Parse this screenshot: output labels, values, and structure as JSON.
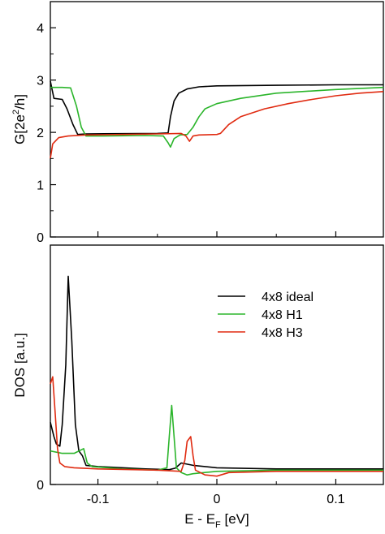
{
  "chart_data": [
    {
      "type": "line",
      "ylabel_main": "G[2e",
      "ylabel_sup": "2",
      "ylabel_end": "/h]",
      "xlim": [
        -0.14,
        0.14
      ],
      "ylim": [
        0,
        4.5
      ],
      "yticks": [
        0,
        1,
        2,
        3,
        4
      ],
      "ytick_labels": [
        "0",
        "1",
        "2",
        "3",
        "4"
      ],
      "grid": false,
      "series": [
        {
          "name": "4x8 ideal",
          "color": "#000000",
          "points": [
            [
              -0.14,
              2.98
            ],
            [
              -0.137,
              2.65
            ],
            [
              -0.13,
              2.63
            ],
            [
              -0.126,
              2.45
            ],
            [
              -0.121,
              2.15
            ],
            [
              -0.117,
              1.96
            ],
            [
              -0.11,
              1.97
            ],
            [
              -0.05,
              1.98
            ],
            [
              -0.041,
              1.99
            ],
            [
              -0.039,
              2.3
            ],
            [
              -0.036,
              2.6
            ],
            [
              -0.032,
              2.75
            ],
            [
              -0.025,
              2.83
            ],
            [
              -0.015,
              2.87
            ],
            [
              0.0,
              2.89
            ],
            [
              0.05,
              2.9
            ],
            [
              0.1,
              2.91
            ],
            [
              0.14,
              2.91
            ]
          ]
        },
        {
          "name": "4x8 H1",
          "color": "#2bb52b",
          "points": [
            [
              -0.14,
              2.86
            ],
            [
              -0.13,
              2.86
            ],
            [
              -0.123,
              2.85
            ],
            [
              -0.118,
              2.5
            ],
            [
              -0.114,
              2.1
            ],
            [
              -0.11,
              1.93
            ],
            [
              -0.1,
              1.93
            ],
            [
              -0.06,
              1.94
            ],
            [
              -0.045,
              1.93
            ],
            [
              -0.041,
              1.8
            ],
            [
              -0.039,
              1.72
            ],
            [
              -0.036,
              1.88
            ],
            [
              -0.031,
              1.95
            ],
            [
              -0.025,
              1.96
            ],
            [
              -0.02,
              2.1
            ],
            [
              -0.015,
              2.3
            ],
            [
              -0.01,
              2.45
            ],
            [
              0.0,
              2.55
            ],
            [
              0.02,
              2.65
            ],
            [
              0.05,
              2.75
            ],
            [
              0.1,
              2.82
            ],
            [
              0.14,
              2.86
            ]
          ]
        },
        {
          "name": "4x8 H3",
          "color": "#e02a10",
          "points": [
            [
              -0.14,
              1.5
            ],
            [
              -0.138,
              1.78
            ],
            [
              -0.133,
              1.9
            ],
            [
              -0.125,
              1.93
            ],
            [
              -0.11,
              1.95
            ],
            [
              -0.08,
              1.96
            ],
            [
              -0.05,
              1.97
            ],
            [
              -0.03,
              1.98
            ],
            [
              -0.026,
              1.93
            ],
            [
              -0.023,
              1.83
            ],
            [
              -0.02,
              1.93
            ],
            [
              -0.015,
              1.95
            ],
            [
              0.0,
              1.96
            ],
            [
              0.003,
              1.98
            ],
            [
              0.01,
              2.15
            ],
            [
              0.02,
              2.3
            ],
            [
              0.04,
              2.45
            ],
            [
              0.06,
              2.55
            ],
            [
              0.08,
              2.63
            ],
            [
              0.1,
              2.7
            ],
            [
              0.12,
              2.75
            ],
            [
              0.14,
              2.78
            ]
          ]
        }
      ]
    },
    {
      "type": "line",
      "xlabel_main": "E - E",
      "xlabel_sub": "F",
      "xlabel_end": " [eV]",
      "ylabel": "DOS [a.u.]",
      "xlim": [
        -0.14,
        0.14
      ],
      "ylim": [
        0,
        1
      ],
      "xticks": [
        -0.1,
        0,
        0.1
      ],
      "xtick_labels": [
        "-0.1",
        "0",
        "0.1"
      ],
      "yticks": [
        0
      ],
      "ytick_labels": [
        "0"
      ],
      "grid": false,
      "legend": "top-right",
      "series": [
        {
          "name": "4x8 ideal",
          "color": "#000000",
          "points": [
            [
              -0.14,
              0.26
            ],
            [
              -0.137,
              0.2
            ],
            [
              -0.135,
              0.17
            ],
            [
              -0.132,
              0.16
            ],
            [
              -0.13,
              0.25
            ],
            [
              -0.127,
              0.5
            ],
            [
              -0.125,
              0.87
            ],
            [
              -0.122,
              0.6
            ],
            [
              -0.119,
              0.25
            ],
            [
              -0.116,
              0.14
            ],
            [
              -0.113,
              0.12
            ],
            [
              -0.11,
              0.08
            ],
            [
              -0.1,
              0.075
            ],
            [
              -0.06,
              0.065
            ],
            [
              -0.04,
              0.062
            ],
            [
              -0.035,
              0.068
            ],
            [
              -0.03,
              0.09
            ],
            [
              -0.02,
              0.08
            ],
            [
              0.0,
              0.07
            ],
            [
              0.05,
              0.065
            ],
            [
              0.1,
              0.065
            ],
            [
              0.14,
              0.065
            ]
          ]
        },
        {
          "name": "4x8 H1",
          "color": "#2bb52b",
          "points": [
            [
              -0.14,
              0.14
            ],
            [
              -0.13,
              0.13
            ],
            [
              -0.12,
              0.13
            ],
            [
              -0.112,
              0.15
            ],
            [
              -0.109,
              0.09
            ],
            [
              -0.105,
              0.075
            ],
            [
              -0.08,
              0.065
            ],
            [
              -0.05,
              0.06
            ],
            [
              -0.042,
              0.07
            ],
            [
              -0.04,
              0.2
            ],
            [
              -0.038,
              0.33
            ],
            [
              -0.036,
              0.2
            ],
            [
              -0.034,
              0.07
            ],
            [
              -0.03,
              0.05
            ],
            [
              -0.025,
              0.04
            ],
            [
              -0.02,
              0.045
            ],
            [
              0.0,
              0.055
            ],
            [
              0.05,
              0.06
            ],
            [
              0.1,
              0.06
            ],
            [
              0.14,
              0.06
            ]
          ]
        },
        {
          "name": "4x8 H3",
          "color": "#e02a10",
          "points": [
            [
              -0.14,
              0.42
            ],
            [
              -0.138,
              0.45
            ],
            [
              -0.136,
              0.3
            ],
            [
              -0.134,
              0.15
            ],
            [
              -0.132,
              0.09
            ],
            [
              -0.128,
              0.075
            ],
            [
              -0.12,
              0.07
            ],
            [
              -0.1,
              0.065
            ],
            [
              -0.05,
              0.06
            ],
            [
              -0.03,
              0.055
            ],
            [
              -0.027,
              0.1
            ],
            [
              -0.025,
              0.18
            ],
            [
              -0.022,
              0.2
            ],
            [
              -0.02,
              0.12
            ],
            [
              -0.018,
              0.06
            ],
            [
              -0.01,
              0.04
            ],
            [
              0.0,
              0.035
            ],
            [
              0.01,
              0.05
            ],
            [
              0.05,
              0.055
            ],
            [
              0.1,
              0.055
            ],
            [
              0.14,
              0.055
            ]
          ]
        }
      ]
    }
  ]
}
